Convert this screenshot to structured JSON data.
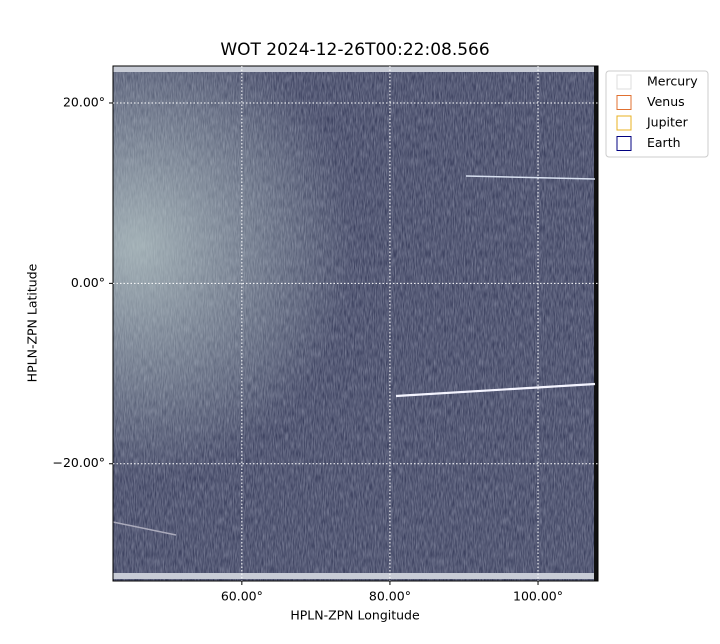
{
  "chart_data": {
    "type": "image",
    "title": "WOT 2024-12-26T00:22:08.566",
    "xlabel": "HPLN-ZPN Longitude",
    "ylabel": "HPLN-ZPN Latitude",
    "xlim": [
      42.6,
      108.1
    ],
    "ylim": [
      -33.0,
      24.1
    ],
    "xticks": [
      {
        "value": 60,
        "label": "60.00°"
      },
      {
        "value": 80,
        "label": "80.00°"
      },
      {
        "value": 100,
        "label": "100.00°"
      }
    ],
    "yticks": [
      {
        "value": -20,
        "label": "−20.00°"
      },
      {
        "value": 0,
        "label": "0.00°"
      },
      {
        "value": 20,
        "label": "20.00°"
      }
    ],
    "grid": true,
    "legend_position": "outside-upper-right",
    "legend": [
      {
        "name": "Mercury",
        "color": "#dddddd"
      },
      {
        "name": "Venus",
        "color": "#e07030"
      },
      {
        "name": "Jupiter",
        "color": "#e8b020"
      },
      {
        "name": "Earth",
        "color": "#000080"
      }
    ]
  }
}
